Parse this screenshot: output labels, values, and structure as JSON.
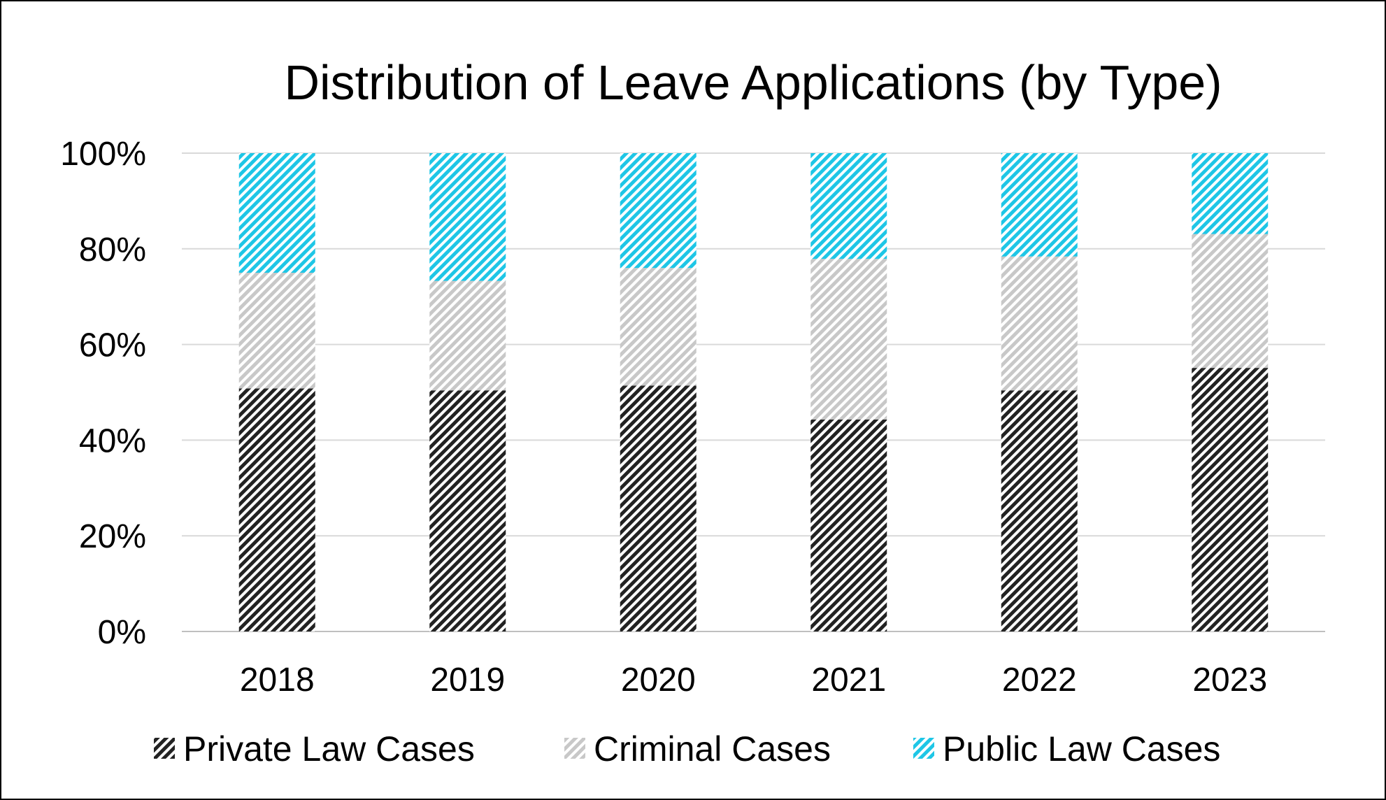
{
  "chart_data": {
    "type": "bar",
    "stacked": true,
    "percent_stacked": true,
    "title": "Distribution of Leave Applications (by Type)",
    "xlabel": "",
    "ylabel": "",
    "categories": [
      "2018",
      "2019",
      "2020",
      "2021",
      "2022",
      "2023"
    ],
    "series": [
      {
        "name": "Private Law Cases",
        "color": "#222222",
        "pattern": "diagonal-stripes",
        "values": [
          50.8,
          50.4,
          51.4,
          44.3,
          50.4,
          55.1
        ]
      },
      {
        "name": "Criminal Cases",
        "color": "#c8c8c8",
        "pattern": "diagonal-stripes",
        "values": [
          24.2,
          22.9,
          24.6,
          33.6,
          28.0,
          28.0
        ]
      },
      {
        "name": "Public Law Cases",
        "color": "#1ec6e6",
        "pattern": "diagonal-stripes",
        "values": [
          25.0,
          26.7,
          24.0,
          22.1,
          21.6,
          16.9
        ]
      }
    ],
    "ylim": [
      0,
      100
    ],
    "yticks": [
      "0%",
      "20%",
      "40%",
      "60%",
      "80%",
      "100%"
    ],
    "grid": true,
    "legend_position": "bottom"
  }
}
